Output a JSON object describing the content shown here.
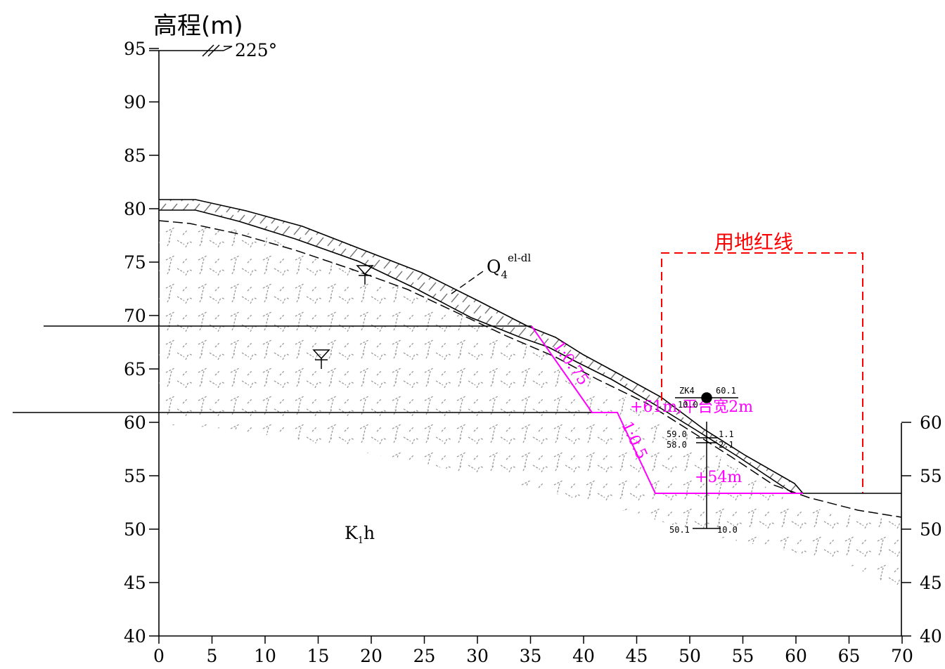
{
  "title": "高程(m)",
  "direction": "225°",
  "y_ticks_left": [
    "95",
    "90",
    "85",
    "80",
    "75",
    "70",
    "65",
    "60",
    "55",
    "50",
    "45",
    "40"
  ],
  "y_ticks_right": [
    "60",
    "55",
    "50",
    "45",
    "40"
  ],
  "x_ticks": [
    "0",
    "5",
    "10",
    "15",
    "20",
    "25",
    "30",
    "35",
    "40",
    "45",
    "50",
    "55",
    "60",
    "65",
    "70"
  ],
  "layer_q4": {
    "main": "Q",
    "sub": "4",
    "sup": "el-dl"
  },
  "layer_k": {
    "main": "K",
    "sub": "1",
    "after": "h"
  },
  "redline_label": "用地红线",
  "slope_upper": "1:0.75",
  "slope_lower": "1:0.5",
  "platform_note": "+61m,平台宽2m",
  "toe_note": "+54m",
  "borehole": {
    "id": "ZK4",
    "top_elev": "60.1",
    "top_depth": "10.0",
    "layer1_elev": "59.0",
    "layer1_depth": "1.1",
    "layer2_elev": "58.0",
    "layer2_depth": "2.1",
    "bottom_elev": "50.1",
    "bottom_depth": "10.0"
  },
  "colors": {
    "design": "#ff00ff",
    "redline": "#ff0000",
    "hatch": "#9a9a9a",
    "line": "#000000"
  }
}
